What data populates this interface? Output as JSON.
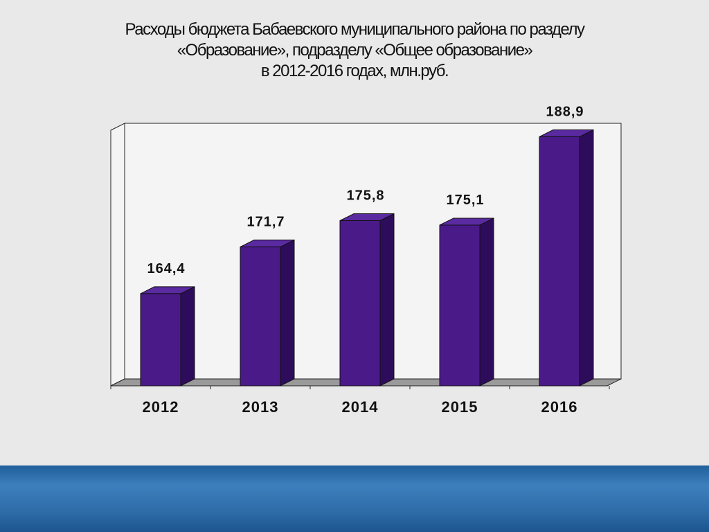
{
  "chart_data": {
    "type": "bar3d",
    "title": "Расходы бюджета Бабаевского муниципального района по разделу\n«Образование», подразделу «Общее образование»\nв 2012-2016 годах, млн.руб.",
    "categories": [
      "2012",
      "2013",
      "2014",
      "2015",
      "2016"
    ],
    "values": [
      164.4,
      171.7,
      175.8,
      175.1,
      188.9
    ],
    "value_labels": [
      "164,4",
      "171,7",
      "175,8",
      "175,1",
      "188,9"
    ],
    "color": "#4a1a88",
    "ylim": [
      150,
      191
    ]
  }
}
